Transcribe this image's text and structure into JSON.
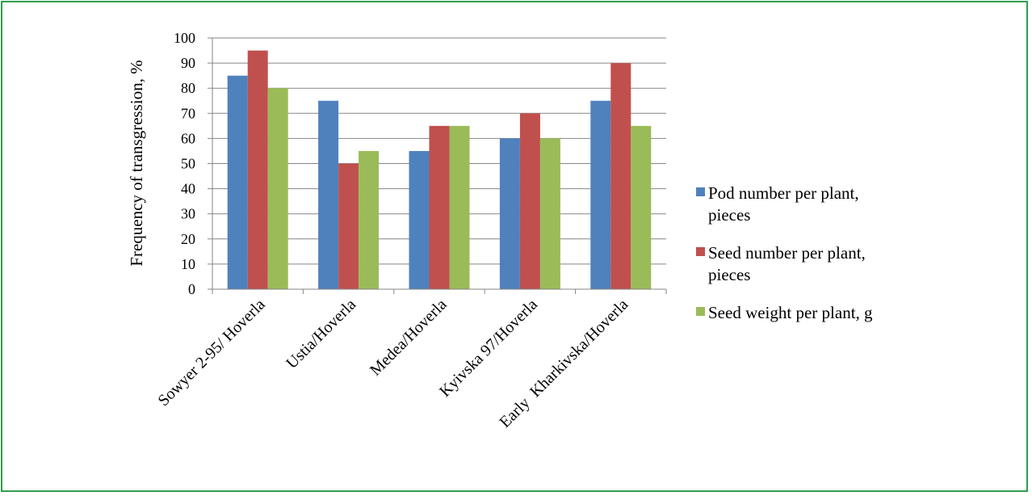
{
  "chart_data": {
    "type": "bar",
    "title": "",
    "xlabel": "",
    "ylabel": "Frequency of transgression, %",
    "ylim": [
      0,
      100
    ],
    "yticks": [
      0,
      10,
      20,
      30,
      40,
      50,
      60,
      70,
      80,
      90,
      100
    ],
    "grid": true,
    "legend_position": "right",
    "categories": [
      "Sowyer 2-95/ Hoverla",
      "Ustia/Hoverla",
      "Medea/Hoverla",
      "Kyivska 97/Hoverla",
      "Early  Kharkivska/Hoverla"
    ],
    "series": [
      {
        "name_lines": [
          "Pod number per plant,",
          "pieces"
        ],
        "color": "#4f81bd",
        "values": [
          85,
          75,
          55,
          60,
          75
        ]
      },
      {
        "name_lines": [
          "Seed number per plant,",
          "pieces"
        ],
        "color": "#c0504d",
        "values": [
          95,
          50,
          65,
          70,
          90
        ]
      },
      {
        "name_lines": [
          "Seed weight per plant, g"
        ],
        "color": "#9bbb59",
        "values": [
          80,
          55,
          65,
          60,
          65
        ]
      }
    ]
  },
  "colors": {
    "frame_border": "#2e9e4f",
    "gridline": "#868686",
    "axis": "#868686"
  }
}
